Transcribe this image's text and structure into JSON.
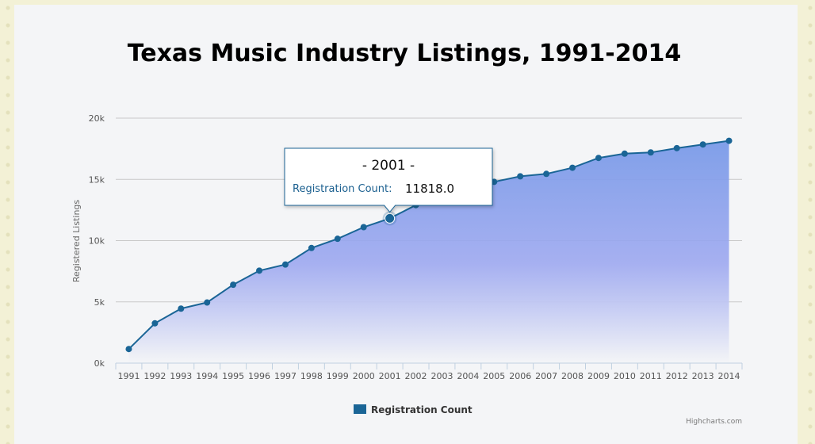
{
  "chart_data": {
    "type": "area",
    "title": "Texas Music Industry Listings, 1991-2014",
    "ylabel": "Registered Listings",
    "xlabel": "",
    "ylim": [
      0,
      20000
    ],
    "yticks": [
      0,
      5000,
      10000,
      15000,
      20000
    ],
    "ytick_labels": [
      "0k",
      "5k",
      "10k",
      "15k",
      "20k"
    ],
    "categories": [
      "1991",
      "1992",
      "1993",
      "1994",
      "1995",
      "1996",
      "1997",
      "1998",
      "1999",
      "2000",
      "2001",
      "2002",
      "2003",
      "2004",
      "2005",
      "2006",
      "2007",
      "2008",
      "2009",
      "2010",
      "2011",
      "2012",
      "2013",
      "2014"
    ],
    "series": [
      {
        "name": "Registration Count",
        "color": "#1a6596",
        "values": [
          1150,
          3250,
          4450,
          4950,
          6400,
          7550,
          8050,
          9400,
          10150,
          11100,
          11818,
          12900,
          13800,
          14300,
          14800,
          15250,
          15450,
          15950,
          16750,
          17100,
          17200,
          17550,
          17850,
          18150
        ]
      }
    ],
    "grid": true,
    "legend": "bottom-center",
    "tooltip": {
      "header": "- 2001 -",
      "label": "Registration Count:",
      "value": "11818.0"
    },
    "credits": "Highcharts.com"
  }
}
